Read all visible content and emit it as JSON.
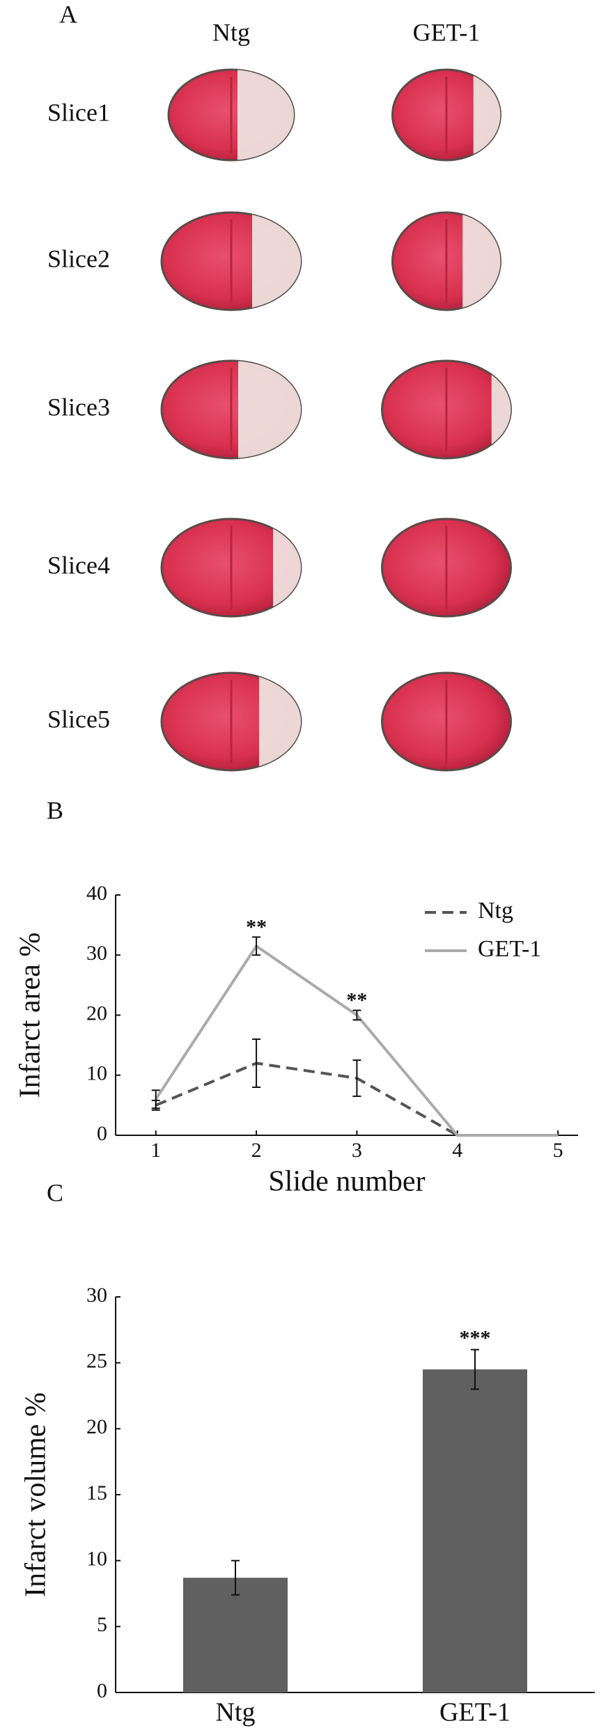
{
  "panel_a": {
    "label": "A",
    "columns": [
      "Ntg",
      "GET-1"
    ],
    "rows": [
      "Slice1",
      "Slice2",
      "Slice3",
      "Slice4",
      "Slice5"
    ]
  },
  "chart_data": [
    {
      "type": "line",
      "panel_label": "B",
      "ylabel": "Infarct area %",
      "xlabel": "Slide number",
      "x": [
        1,
        2,
        3,
        4,
        5
      ],
      "series": [
        {
          "name": "Ntg",
          "color": "#555555",
          "linestyle": "dashed",
          "values": [
            5,
            12,
            9.5,
            0,
            0
          ],
          "errors": [
            0.8,
            4,
            3,
            0,
            0
          ]
        },
        {
          "name": "GET-1",
          "color": "#aaaaaa",
          "linestyle": "solid",
          "values": [
            6,
            31.5,
            20,
            0,
            0
          ],
          "errors": [
            1.5,
            1.5,
            0.8,
            0,
            0
          ]
        }
      ],
      "annotations": [
        {
          "x": 2,
          "text": "**"
        },
        {
          "x": 3,
          "text": "**"
        }
      ],
      "xlim": [
        0.6,
        5.2
      ],
      "xticks": [
        1,
        2,
        3,
        4,
        5
      ],
      "ylim": [
        0,
        40
      ],
      "yticks": [
        0,
        10,
        20,
        30,
        40
      ],
      "grid": false,
      "legend": "upper right"
    },
    {
      "type": "bar",
      "panel_label": "C",
      "ylabel": "Infarct volume %",
      "categories": [
        "Ntg",
        "GET-1"
      ],
      "values": [
        8.7,
        24.5
      ],
      "errors": [
        1.3,
        1.5
      ],
      "color": "#606060",
      "annotations": [
        {
          "x": "GET-1",
          "text": "***"
        }
      ],
      "ylim": [
        0,
        30
      ],
      "yticks": [
        0,
        5,
        10,
        15,
        20,
        25,
        30
      ],
      "grid": false
    }
  ]
}
